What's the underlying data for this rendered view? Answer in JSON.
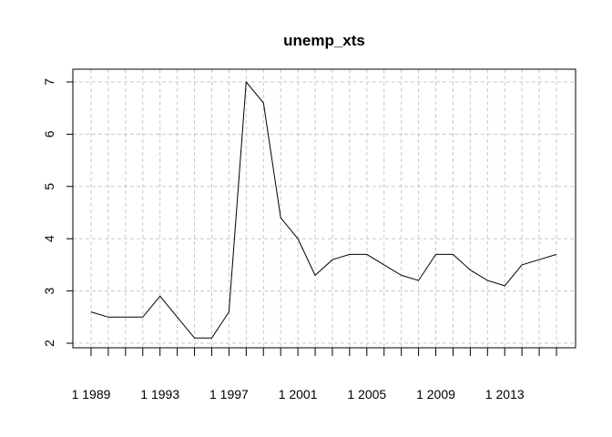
{
  "chart_data": {
    "type": "line",
    "title": "unemp_xts",
    "xlabel": "",
    "ylabel": "",
    "x": [
      1989,
      1990,
      1991,
      1992,
      1993,
      1994,
      1995,
      1996,
      1997,
      1998,
      1999,
      2000,
      2001,
      2002,
      2003,
      2004,
      2005,
      2006,
      2007,
      2008,
      2009,
      2010,
      2011,
      2012,
      2013,
      2014,
      2015,
      2016
    ],
    "values": [
      2.6,
      2.5,
      2.5,
      2.5,
      2.9,
      2.5,
      2.1,
      2.1,
      2.6,
      7.0,
      6.6,
      4.4,
      4.0,
      3.3,
      3.6,
      3.7,
      3.7,
      3.5,
      3.3,
      3.2,
      3.7,
      3.7,
      3.4,
      3.2,
      3.1,
      3.5,
      3.6,
      3.7
    ],
    "ylim": [
      2,
      7
    ],
    "yticks": [
      2,
      3,
      4,
      5,
      6,
      7
    ],
    "xtick_labels": [
      {
        "year": 1989,
        "label": "1 1989"
      },
      {
        "year": 1993,
        "label": "1 1993"
      },
      {
        "year": 1997,
        "label": "1 1997"
      },
      {
        "year": 2001,
        "label": "1 2001"
      },
      {
        "year": 2005,
        "label": "1 2005"
      },
      {
        "year": 2009,
        "label": "1 2009"
      },
      {
        "year": 2013,
        "label": "1 2013"
      }
    ],
    "grid": true,
    "line_color": "#000000",
    "grid_color": "#c8c8c8"
  }
}
